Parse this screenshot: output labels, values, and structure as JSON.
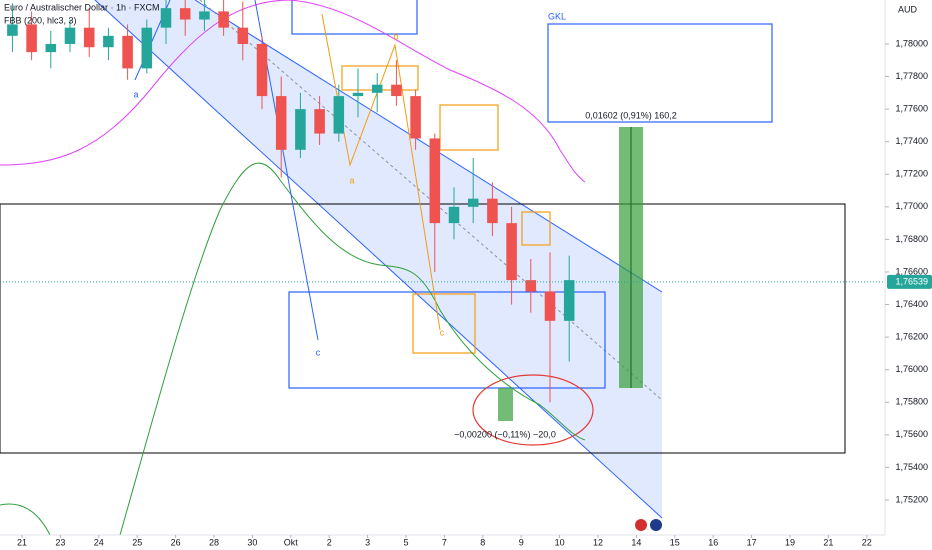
{
  "chart_data": {
    "type": "candlestick",
    "title": "Euro / Australischer Dollar · 1h · FXCM",
    "subtitle": "FBB (200, hlc3, 3)",
    "y_axis_label": "AUD",
    "x": [
      -0.25,
      0.25,
      0.75,
      1.25,
      1.75,
      2.25,
      2.75,
      3.25,
      3.75,
      4.25,
      4.75,
      5.25,
      5.75,
      6.25,
      6.75,
      7.25,
      7.75,
      8.25,
      8.75,
      9.25,
      9.75,
      10.25,
      10.75,
      11.25,
      11.75,
      12.25,
      12.75,
      13.25,
      13.75,
      14.25
    ],
    "series": [
      {
        "name": "EUR/AUD",
        "up_color": "#26a69a",
        "down_color": "#ef5350",
        "open": [
          1.7805,
          1.7812,
          1.7795,
          1.78,
          1.781,
          1.7798,
          1.7805,
          1.7785,
          1.781,
          1.7822,
          1.7815,
          1.782,
          1.781,
          1.78,
          1.7768,
          1.7735,
          1.776,
          1.7745,
          1.7768,
          1.777,
          1.7775,
          1.7768,
          1.7742,
          1.769,
          1.77,
          1.7705,
          1.769,
          1.7655,
          1.7648,
          1.763
        ],
        "high": [
          1.7825,
          1.782,
          1.7808,
          1.7815,
          1.7822,
          1.781,
          1.7812,
          1.7815,
          1.783,
          1.783,
          1.7828,
          1.7828,
          1.7826,
          1.7805,
          1.778,
          1.777,
          1.7768,
          1.7775,
          1.7785,
          1.7782,
          1.779,
          1.7772,
          1.7745,
          1.7712,
          1.773,
          1.7715,
          1.77,
          1.7668,
          1.7672,
          1.767
        ],
        "low": [
          1.7795,
          1.779,
          1.7785,
          1.7795,
          1.7792,
          1.779,
          1.7778,
          1.7782,
          1.78,
          1.7805,
          1.7808,
          1.7805,
          1.779,
          1.776,
          1.7718,
          1.773,
          1.7738,
          1.774,
          1.7755,
          1.7758,
          1.7762,
          1.7735,
          1.766,
          1.768,
          1.769,
          1.7682,
          1.764,
          1.7635,
          1.758,
          1.7605
        ],
        "close": [
          1.7812,
          1.7795,
          1.78,
          1.781,
          1.7798,
          1.7805,
          1.7785,
          1.781,
          1.7822,
          1.7815,
          1.782,
          1.781,
          1.78,
          1.7768,
          1.7735,
          1.776,
          1.7745,
          1.7768,
          1.777,
          1.7775,
          1.7768,
          1.7742,
          1.769,
          1.77,
          1.7705,
          1.769,
          1.7655,
          1.7648,
          1.763,
          1.7655
        ]
      }
    ],
    "last_price": {
      "value": 1.76539,
      "label": "1,76539"
    },
    "xlim": [
      -0.573,
      22.474
    ],
    "xticks": [
      {
        "value": 0,
        "label": "21"
      },
      {
        "value": 1,
        "label": "23"
      },
      {
        "value": 2,
        "label": "24"
      },
      {
        "value": 3,
        "label": "25"
      },
      {
        "value": 4,
        "label": "26"
      },
      {
        "value": 5,
        "label": "28"
      },
      {
        "value": 6,
        "label": "30"
      },
      {
        "value": 7,
        "label": "Okt"
      },
      {
        "value": 8,
        "label": "2"
      },
      {
        "value": 9,
        "label": "3"
      },
      {
        "value": 10,
        "label": "5"
      },
      {
        "value": 11,
        "label": "7"
      },
      {
        "value": 12,
        "label": "8"
      },
      {
        "value": 13,
        "label": "9"
      },
      {
        "value": 14,
        "label": "10"
      },
      {
        "value": 15,
        "label": "12"
      },
      {
        "value": 16,
        "label": "14"
      },
      {
        "value": 17,
        "label": "15"
      },
      {
        "value": 18,
        "label": "16"
      },
      {
        "value": 19,
        "label": "17"
      },
      {
        "value": 20,
        "label": "19"
      },
      {
        "value": 21,
        "label": "21"
      },
      {
        "value": 22,
        "label": "22"
      }
    ],
    "ylim": [
      1.74985,
      1.7827
    ],
    "yticks": [
      {
        "value": 1.78,
        "label": "1,78000"
      },
      {
        "value": 1.778,
        "label": "1,77800"
      },
      {
        "value": 1.776,
        "label": "1,77600"
      },
      {
        "value": 1.774,
        "label": "1,77400"
      },
      {
        "value": 1.772,
        "label": "1,77200"
      },
      {
        "value": 1.77,
        "label": "1,77000"
      },
      {
        "value": 1.768,
        "label": "1,76800"
      },
      {
        "value": 1.766,
        "label": "1,76600"
      },
      {
        "value": 1.764,
        "label": "1,76400"
      },
      {
        "value": 1.762,
        "label": "1,76200"
      },
      {
        "value": 1.76,
        "label": "1,76000"
      },
      {
        "value": 1.758,
        "label": "1,75800"
      },
      {
        "value": 1.756,
        "label": "1,75600"
      },
      {
        "value": 1.754,
        "label": "1,75400"
      },
      {
        "value": 1.752,
        "label": "1,75200"
      }
    ],
    "annotations": [
      "a",
      "a",
      "b",
      "c",
      "c",
      "GKL",
      "0,01602 (0,91%) 160,2",
      "−0,00200 (−0,11%) −20,0"
    ]
  }
}
